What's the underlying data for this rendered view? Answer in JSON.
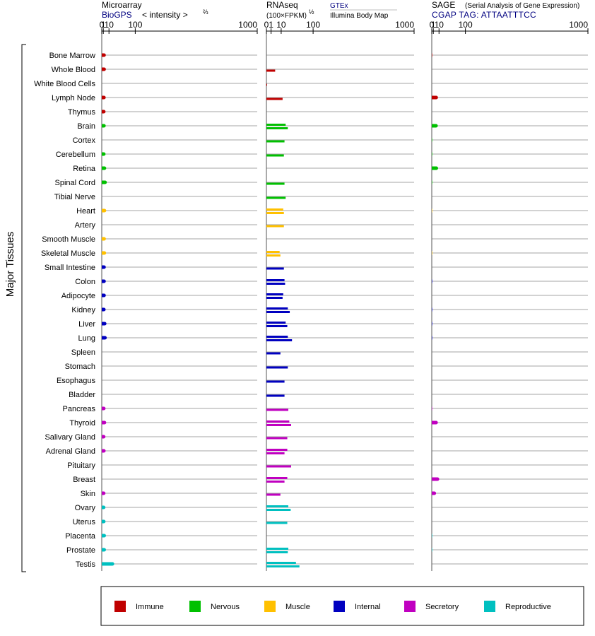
{
  "chart_data": {
    "type": "bar",
    "y_group_label": "Major Tissues",
    "categories": [
      "Bone Marrow",
      "Whole Blood",
      "White Blood Cells",
      "Lymph Node",
      "Thymus",
      "Brain",
      "Cortex",
      "Cerebellum",
      "Retina",
      "Spinal Cord",
      "Tibial Nerve",
      "Heart",
      "Artery",
      "Smooth Muscle",
      "Skeletal Muscle",
      "Small Intestine",
      "Colon",
      "Adipocyte",
      "Kidney",
      "Liver",
      "Lung",
      "Spleen",
      "Stomach",
      "Esophagus",
      "Bladder",
      "Pancreas",
      "Thyroid",
      "Salivary Gland",
      "Adrenal Gland",
      "Pituitary",
      "Breast",
      "Skin",
      "Ovary",
      "Uterus",
      "Placenta",
      "Prostate",
      "Testis"
    ],
    "category_group": [
      "Immune",
      "Immune",
      "Immune",
      "Immune",
      "Immune",
      "Nervous",
      "Nervous",
      "Nervous",
      "Nervous",
      "Nervous",
      "Nervous",
      "Muscle",
      "Muscle",
      "Muscle",
      "Muscle",
      "Internal",
      "Internal",
      "Internal",
      "Internal",
      "Internal",
      "Internal",
      "Internal",
      "Internal",
      "Internal",
      "Internal",
      "Secretory",
      "Secretory",
      "Secretory",
      "Secretory",
      "Secretory",
      "Secretory",
      "Secretory",
      "Reproductive",
      "Reproductive",
      "Reproductive",
      "Reproductive",
      "Reproductive"
    ],
    "groups": [
      {
        "name": "Immune",
        "color": "#c00000"
      },
      {
        "name": "Nervous",
        "color": "#00c000"
      },
      {
        "name": "Muscle",
        "color": "#ffc000"
      },
      {
        "name": "Internal",
        "color": "#0000c0"
      },
      {
        "name": "Secretory",
        "color": "#c000c0"
      },
      {
        "name": "Reproductive",
        "color": "#00c0c0"
      }
    ],
    "panels": [
      {
        "title": "Microarray",
        "subtitle_source": "BioGPS",
        "subtitle_unit": "< intensity >",
        "unit_exponent": "⅔",
        "scale": "power 2/3",
        "ticks": [
          "0",
          "1",
          "10",
          "100",
          "1000"
        ],
        "tick_values": [
          0,
          1,
          10,
          100,
          1000
        ],
        "xlim": [
          0,
          1000
        ],
        "series": [
          {
            "name": "",
            "values": [
              1.8,
              1.9,
              null,
              1.7,
              1.5,
              1.7,
              null,
              1.5,
              2.3,
              3.1,
              null,
              2.3,
              null,
              1.9,
              2.2,
              1.8,
              1.8,
              1.8,
              1.6,
              2.6,
              3.0,
              null,
              null,
              null,
              null,
              1.5,
              2.3,
              1.4,
              1.6,
              null,
              null,
              1.4,
              1.4,
              1.5,
              2.0,
              2.0,
              18
            ]
          }
        ]
      },
      {
        "title": "RNAseq",
        "subtitle_unit": "(100×FPKM)",
        "unit_exponent": "½",
        "source_a": "GTEx",
        "source_b": "Illumina Body Map",
        "scale": "power 1/2",
        "ticks": [
          "0",
          "1",
          "10",
          "100",
          "1000"
        ],
        "tick_values": [
          0,
          1,
          10,
          100,
          1000
        ],
        "xlim": [
          0,
          1000
        ],
        "series": [
          {
            "name": "GTEx",
            "values": [
              null,
              3.5,
              0.02,
              null,
              null,
              17,
              null,
              null,
              null,
              null,
              null,
              13,
              null,
              null,
              8,
              null,
              null,
              null,
              null,
              null,
              null,
              null,
              null,
              null,
              null,
              null,
              null,
              null,
              null,
              null,
              null,
              null,
              null,
              null,
              null,
              null,
              null
            ]
          },
          {
            "name": "Illumina Body Map",
            "values": [
              null,
              null,
              null,
              null,
              null,
              null,
              null,
              null,
              null,
              null,
              null,
              null,
              null,
              null,
              null,
              null,
              null,
              null,
              null,
              null,
              null,
              null,
              null,
              null,
              null,
              null,
              null,
              null,
              null,
              null,
              null,
              null,
              null,
              null,
              null,
              null,
              null
            ]
          }
        ],
        "bars": [
          {
            "category": "Whole Blood",
            "values": [
              3.5
            ]
          },
          {
            "category": "White Blood Cells",
            "values": [
              0.02
            ]
          },
          {
            "category": "Lymph Node",
            "values": [
              12
            ]
          },
          {
            "category": "Brain",
            "values": [
              17,
              21
            ]
          },
          {
            "category": "Cortex",
            "values": [
              15
            ]
          },
          {
            "category": "Cerebellum",
            "values": [
              14
            ]
          },
          {
            "category": "Spinal Cord",
            "values": [
              15
            ]
          },
          {
            "category": "Tibial Nerve",
            "values": [
              17
            ]
          },
          {
            "category": "Heart",
            "values": [
              13,
              14
            ]
          },
          {
            "category": "Artery",
            "values": [
              14
            ]
          },
          {
            "category": "Skeletal Muscle",
            "values": [
              8,
              9
            ]
          },
          {
            "category": "Small Intestine",
            "values": [
              14
            ]
          },
          {
            "category": "Colon",
            "values": [
              15,
              16
            ]
          },
          {
            "category": "Adipocyte",
            "values": [
              13,
              12
            ]
          },
          {
            "category": "Kidney",
            "values": [
              21,
              25
            ]
          },
          {
            "category": "Liver",
            "values": [
              17,
              20
            ]
          },
          {
            "category": "Lung",
            "values": [
              21,
              30
            ]
          },
          {
            "category": "Spleen",
            "values": [
              9
            ]
          },
          {
            "category": "Stomach",
            "values": [
              21
            ]
          },
          {
            "category": "Esophagus",
            "values": [
              15
            ]
          },
          {
            "category": "Bladder",
            "values": [
              15
            ]
          },
          {
            "category": "Pancreas",
            "values": [
              22
            ]
          },
          {
            "category": "Thyroid",
            "values": [
              24,
              28
            ]
          },
          {
            "category": "Salivary Gland",
            "values": [
              20
            ]
          },
          {
            "category": "Adrenal Gland",
            "values": [
              20,
              15
            ]
          },
          {
            "category": "Pituitary",
            "values": [
              28
            ]
          },
          {
            "category": "Breast",
            "values": [
              20,
              15
            ]
          },
          {
            "category": "Skin",
            "values": [
              9
            ]
          },
          {
            "category": "Ovary",
            "values": [
              22,
              27
            ]
          },
          {
            "category": "Uterus",
            "values": [
              20
            ]
          },
          {
            "category": "Prostate",
            "values": [
              22,
              21
            ]
          },
          {
            "category": "Testis",
            "values": [
              40,
              50
            ]
          }
        ]
      },
      {
        "title": "SAGE",
        "title_note": "(Serial Analysis of Gene Expression)",
        "subtitle_source": "CGAP TAG: ATTAATTTCC",
        "scale": "power 2/3",
        "ticks": [
          "0",
          "1",
          "10",
          "100",
          "1000"
        ],
        "tick_values": [
          0,
          1,
          10,
          100,
          1000
        ],
        "xlim": [
          0,
          1000
        ],
        "series": [
          {
            "name": "",
            "values": [
              0.05,
              null,
              null,
              4.8,
              null,
              4.5,
              0.03,
              0.03,
              5.0,
              0.03,
              null,
              0.02,
              null,
              null,
              0.02,
              null,
              0.08,
              null,
              0.06,
              0.06,
              0.06,
              null,
              null,
              null,
              null,
              0.06,
              4.6,
              null,
              null,
              null,
              7.0,
              2.1,
              null,
              null,
              0.03,
              0.03,
              null
            ]
          }
        ]
      }
    ]
  }
}
